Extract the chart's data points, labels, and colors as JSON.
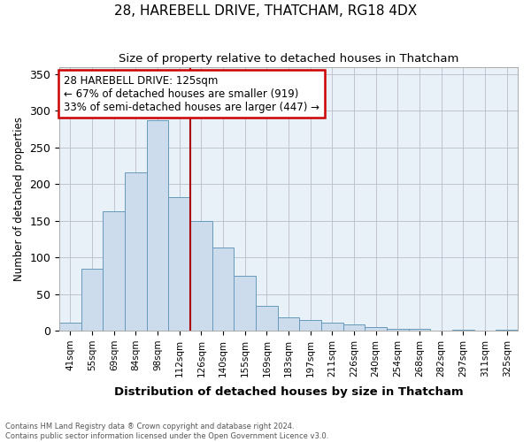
{
  "title": "28, HAREBELL DRIVE, THATCHAM, RG18 4DX",
  "subtitle": "Size of property relative to detached houses in Thatcham",
  "xlabel": "Distribution of detached houses by size in Thatcham",
  "ylabel": "Number of detached properties",
  "categories": [
    "41sqm",
    "55sqm",
    "69sqm",
    "84sqm",
    "98sqm",
    "112sqm",
    "126sqm",
    "140sqm",
    "155sqm",
    "169sqm",
    "183sqm",
    "197sqm",
    "211sqm",
    "226sqm",
    "240sqm",
    "254sqm",
    "268sqm",
    "282sqm",
    "297sqm",
    "311sqm",
    "325sqm"
  ],
  "values": [
    11,
    84,
    163,
    216,
    287,
    182,
    150,
    113,
    75,
    34,
    18,
    14,
    11,
    9,
    5,
    3,
    2,
    0,
    1,
    0,
    1
  ],
  "bar_color": "#ccdcec",
  "bar_edge_color": "#6699bb",
  "vline_x": 5.5,
  "vline_color": "#aa0000",
  "annotation_title": "28 HAREBELL DRIVE: 125sqm",
  "annotation_line1": "← 67% of detached houses are smaller (919)",
  "annotation_line2": "33% of semi-detached houses are larger (447) →",
  "annotation_box_color": "#ffffff",
  "annotation_box_edge": "#cc0000",
  "ylim": [
    0,
    360
  ],
  "yticks": [
    0,
    50,
    100,
    150,
    200,
    250,
    300,
    350
  ],
  "footer1": "Contains HM Land Registry data ® Crown copyright and database right 2024.",
  "footer2": "Contains public sector information licensed under the Open Government Licence v3.0.",
  "bg_color": "#e8f0f8"
}
